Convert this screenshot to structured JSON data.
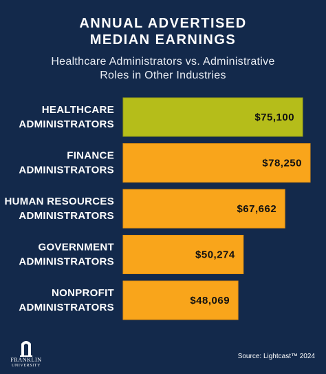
{
  "colors": {
    "background": "#13294b",
    "highlight": "#b5bd1a",
    "bar": "#f9a51b",
    "bar_highlight_border": "#9aa016",
    "bar_border": "#e8930f",
    "value_text": "#111111"
  },
  "header": {
    "title_line1": "ANNUAL ADVERTISED",
    "title_line2": "MEDIAN EARNINGS",
    "subtitle_line1": "Healthcare Administrators vs. Administrative",
    "subtitle_line2": "Roles in Other Industries"
  },
  "chart_data": {
    "type": "bar",
    "orientation": "horizontal",
    "title": "ANNUAL ADVERTISED MEDIAN EARNINGS",
    "subtitle": "Healthcare Administrators vs. Administrative Roles in Other Industries",
    "categories": [
      [
        "HEALTHCARE",
        "ADMINISTRATORS"
      ],
      [
        "FINANCE",
        "ADMINISTRATORS"
      ],
      [
        "HUMAN RESOURCES",
        "ADMINISTRATORS"
      ],
      [
        "GOVERNMENT",
        "ADMINISTRATORS"
      ],
      [
        "NONPROFIT",
        "ADMINISTRATORS"
      ]
    ],
    "values": [
      75100,
      78250,
      67662,
      50274,
      48069
    ],
    "value_labels": [
      "$75,100",
      "$78,250",
      "$67,662",
      "$50,274",
      "$48,069"
    ],
    "highlight_index": 0,
    "xlim": [
      0,
      78250
    ],
    "grid": false,
    "legend": "none"
  },
  "logo": {
    "icon": "franklin-arch-icon",
    "line1": "FRANKLIN",
    "line2": "UNIVERSITY"
  },
  "footer": {
    "source": "Source: Lightcast™ 2024"
  }
}
